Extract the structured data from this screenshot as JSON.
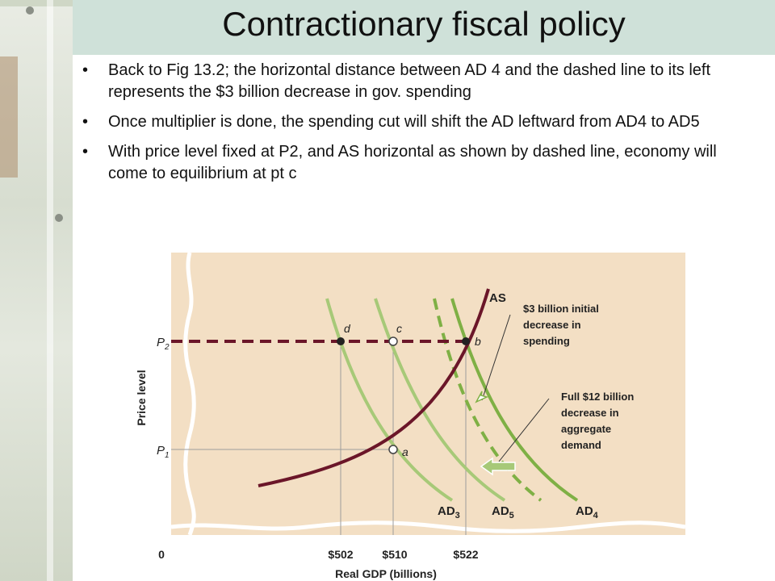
{
  "slide": {
    "title": "Contractionary fiscal policy",
    "bullets": [
      "Back to Fig 13.2; the horizontal distance between AD 4 and the dashed line to its left represents the $3 billion decrease in gov. spending",
      "Once multiplier is done, the spending cut will shift the AD leftward from AD4 to AD5",
      "With price level fixed at P2, and AS horizontal as shown by dashed line, economy will come to equilibrium at pt c"
    ]
  },
  "colors": {
    "title_band": "#cfe1d9",
    "chart_bg": "#f3dfc4",
    "as_curve": "#6b1629",
    "ad_curves": "#a7c978",
    "ad4_curve": "#7fb045"
  },
  "chart_data": {
    "type": "line",
    "xlabel": "Real GDP (billions)",
    "ylabel": "Price level",
    "x_ticks": [
      "0",
      "$502",
      "$510",
      "$522"
    ],
    "y_ticks": [
      "P",
      "P"
    ],
    "y_tick_subscripts": [
      "2",
      "1"
    ],
    "series": [
      {
        "name": "AS"
      },
      {
        "name": "AD",
        "subscript": "3"
      },
      {
        "name": "AD",
        "subscript": "5"
      },
      {
        "name": "AD",
        "subscript": "4"
      }
    ],
    "points": [
      {
        "label": "d",
        "x": 502,
        "y": "P2"
      },
      {
        "label": "c",
        "x": 510,
        "y": "P2"
      },
      {
        "label": "b",
        "x": 522,
        "y": "P2"
      },
      {
        "label": "a",
        "x": 510,
        "y": "P1"
      }
    ],
    "annotations": [
      [
        "$3 billion initial",
        "decrease in",
        "spending"
      ],
      [
        "Full $12 billion",
        "decrease in",
        "aggregate",
        "demand"
      ]
    ]
  }
}
